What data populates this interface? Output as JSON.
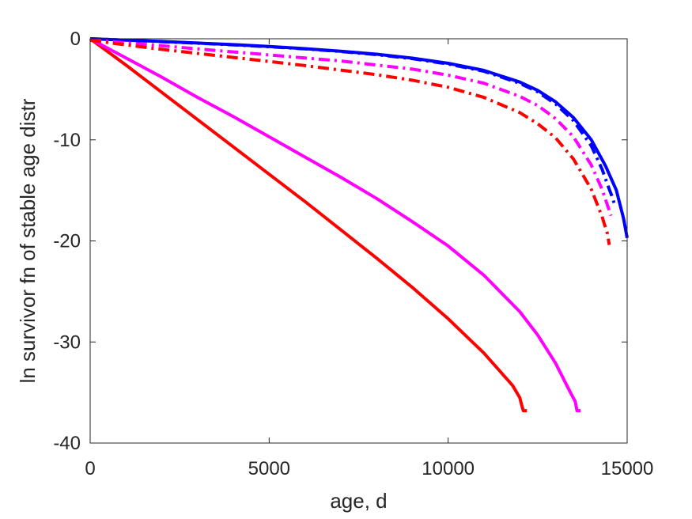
{
  "chart_data": {
    "type": "line",
    "title": "",
    "xlabel": "age, d",
    "ylabel": "ln survivor fn of stable age distr",
    "xlim": [
      0,
      15000
    ],
    "ylim": [
      -40,
      0
    ],
    "xticks": [
      0,
      5000,
      10000,
      15000
    ],
    "yticks": [
      0,
      -10,
      -20,
      -30,
      -40
    ],
    "xtick_labels": [
      "0",
      "5000",
      "10000",
      "15000"
    ],
    "ytick_labels": [
      "0",
      "-10",
      "-20",
      "-30",
      "-40"
    ],
    "grid": false,
    "legend": "none",
    "series": [
      {
        "color": "#ff0000",
        "style": "solid",
        "x": [
          0,
          1000,
          2000,
          3000,
          4000,
          5000,
          6000,
          7000,
          8000,
          9000,
          10000,
          11000,
          11800,
          12000,
          12050,
          12100,
          12200
        ],
        "y": [
          0,
          -2.6,
          -5.3,
          -8.0,
          -10.7,
          -13.4,
          -16.1,
          -18.9,
          -21.7,
          -24.6,
          -27.7,
          -31.1,
          -34.3,
          -35.5,
          -36.2,
          -36.8,
          -36.8
        ]
      },
      {
        "color": "#ff00ff",
        "style": "solid",
        "x": [
          0,
          1000,
          2000,
          3000,
          4000,
          5000,
          6000,
          7000,
          8000,
          9000,
          10000,
          11000,
          12000,
          12500,
          13000,
          13400,
          13550,
          13600,
          13700
        ],
        "y": [
          0,
          -1.9,
          -3.8,
          -5.8,
          -7.7,
          -9.7,
          -11.7,
          -13.7,
          -15.8,
          -18.1,
          -20.5,
          -23.4,
          -27.0,
          -29.3,
          -32.1,
          -34.9,
          -35.9,
          -36.8,
          -36.8
        ]
      },
      {
        "color": "#0000ff",
        "style": "solid",
        "x": [
          0,
          1000,
          2000,
          3000,
          4000,
          5000,
          6000,
          7000,
          8000,
          9000,
          10000,
          11000,
          12000,
          12500,
          13000,
          13500,
          14000,
          14400,
          14700,
          14900,
          15000
        ],
        "y": [
          0,
          -0.13,
          -0.27,
          -0.42,
          -0.58,
          -0.77,
          -0.98,
          -1.23,
          -1.53,
          -1.92,
          -2.43,
          -3.13,
          -4.28,
          -5.1,
          -6.24,
          -7.8,
          -10.0,
          -12.6,
          -15.0,
          -17.8,
          -19.7
        ]
      },
      {
        "color": "#0000ff",
        "style": "dashdot",
        "x": [
          0,
          1000,
          2000,
          3000,
          4000,
          5000,
          6000,
          7000,
          8000,
          9000,
          10000,
          11000,
          12000,
          12500,
          13000,
          13500,
          14000,
          14300,
          14500,
          14600,
          14650
        ],
        "y": [
          0,
          -0.14,
          -0.29,
          -0.44,
          -0.6,
          -0.79,
          -1.0,
          -1.26,
          -1.57,
          -1.97,
          -2.5,
          -3.22,
          -4.4,
          -5.25,
          -6.45,
          -8.1,
          -10.6,
          -12.9,
          -14.9,
          -15.8,
          -16.5
        ]
      },
      {
        "color": "#ff00ff",
        "style": "dashdot",
        "x": [
          0,
          1000,
          2000,
          3000,
          4000,
          5000,
          6000,
          7000,
          8000,
          9000,
          10000,
          11000,
          12000,
          12500,
          13000,
          13500,
          14000,
          14300,
          14500,
          14550
        ],
        "y": [
          -0.1,
          -0.4,
          -0.7,
          -1.0,
          -1.3,
          -1.6,
          -1.9,
          -2.2,
          -2.6,
          -3.0,
          -3.6,
          -4.4,
          -5.7,
          -6.6,
          -7.9,
          -9.7,
          -12.5,
          -14.9,
          -17.0,
          -17.5
        ]
      },
      {
        "color": "#ff0000",
        "style": "dashdot",
        "x": [
          0,
          1000,
          2000,
          3000,
          4000,
          5000,
          6000,
          7000,
          8000,
          9000,
          10000,
          11000,
          12000,
          12500,
          13000,
          13500,
          14000,
          14300,
          14450,
          14500
        ],
        "y": [
          -0.15,
          -0.6,
          -1.05,
          -1.45,
          -1.85,
          -2.25,
          -2.65,
          -3.1,
          -3.55,
          -4.1,
          -4.8,
          -5.8,
          -7.3,
          -8.4,
          -9.8,
          -11.9,
          -14.9,
          -17.6,
          -19.3,
          -20.4
        ]
      }
    ]
  }
}
